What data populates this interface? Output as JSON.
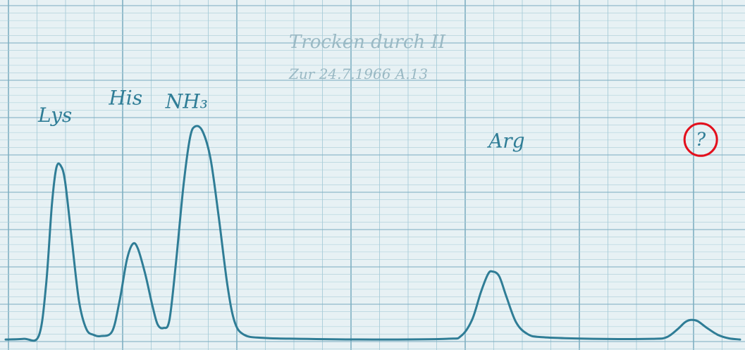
{
  "colors": {
    "paper": "#e7f1f4",
    "grid_minor": "#a9cdd9",
    "grid_major": "#7fb0c2",
    "ink": "#2f7d96",
    "pencil": "#9ab9c4",
    "circle": "#e3101d"
  },
  "header": {
    "line1": "Trocken durch II",
    "line2": "Zur 24.7.1966 A.13"
  },
  "chart_data": {
    "type": "line",
    "title": "",
    "xlabel": "",
    "ylabel": "",
    "grid": true,
    "xlim": [
      0,
      100
    ],
    "ylim": [
      0,
      100
    ],
    "series": [
      {
        "points": [
          [
            0,
            1.5
          ],
          [
            2.5,
            1.8
          ],
          [
            4.5,
            3
          ],
          [
            5.5,
            25
          ],
          [
            6.3,
            60
          ],
          [
            6.9,
            76
          ],
          [
            7.5,
            77
          ],
          [
            8.1,
            70
          ],
          [
            9,
            45
          ],
          [
            10,
            18
          ],
          [
            11,
            6
          ],
          [
            12,
            3.5
          ],
          [
            13,
            3
          ],
          [
            14.5,
            5
          ],
          [
            15.5,
            18
          ],
          [
            16.5,
            36
          ],
          [
            17.3,
            43
          ],
          [
            18,
            41
          ],
          [
            19,
            30
          ],
          [
            20,
            16
          ],
          [
            20.7,
            8
          ],
          [
            21.5,
            6.5
          ],
          [
            22.3,
            10
          ],
          [
            23.2,
            35
          ],
          [
            24.2,
            68
          ],
          [
            25.1,
            89
          ],
          [
            25.8,
            94
          ],
          [
            26.8,
            92
          ],
          [
            27.9,
            80
          ],
          [
            29,
            55
          ],
          [
            30.2,
            25
          ],
          [
            31.2,
            9
          ],
          [
            32.5,
            3.5
          ],
          [
            35,
            2.2
          ],
          [
            40,
            1.8
          ],
          [
            50,
            1.5
          ],
          [
            60,
            1.8
          ],
          [
            62,
            3
          ],
          [
            63.5,
            10
          ],
          [
            64.7,
            22
          ],
          [
            65.7,
            30
          ],
          [
            66.3,
            31
          ],
          [
            67.2,
            29
          ],
          [
            68.2,
            20
          ],
          [
            69.5,
            9
          ],
          [
            71,
            4
          ],
          [
            73,
            2.5
          ],
          [
            80,
            1.8
          ],
          [
            88,
            1.8
          ],
          [
            90,
            2.5
          ],
          [
            91.5,
            6
          ],
          [
            92.5,
            9
          ],
          [
            93.3,
            10
          ],
          [
            94.2,
            9.5
          ],
          [
            95.5,
            6.5
          ],
          [
            97,
            3.5
          ],
          [
            98.5,
            2
          ],
          [
            100,
            1.5
          ]
        ]
      }
    ],
    "peaks": [
      {
        "label": "Lys",
        "x": 7.5,
        "y": 77
      },
      {
        "label": "His",
        "x": 17.3,
        "y": 43
      },
      {
        "label": "NH₃",
        "x": 25.8,
        "y": 94
      },
      {
        "label": "Arg",
        "x": 66.3,
        "y": 31
      },
      {
        "label": "?",
        "x": 93.3,
        "y": 10
      }
    ],
    "highlight": {
      "label": "?"
    }
  }
}
